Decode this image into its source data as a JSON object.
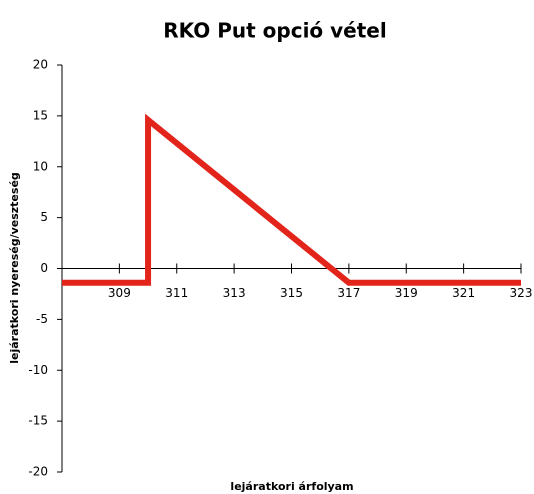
{
  "chart_data": {
    "type": "line",
    "title": "RKO Put opció vétel",
    "x_label": "lejáratkori árfolyam",
    "y_label": "lejáratkori nyereség/veszteség",
    "series": [
      {
        "name": "RKO Put",
        "color": "#e3241b",
        "x": [
          307,
          310,
          310,
          317,
          323
        ],
        "values": [
          -1.4,
          -1.4,
          14.6,
          -1.4,
          -1.4
        ]
      }
    ],
    "xlim": [
      307,
      323
    ],
    "xticks": [
      309,
      311,
      313,
      315,
      317,
      319,
      321,
      323
    ],
    "ylim": [
      -20,
      20
    ],
    "yticks": [
      -20,
      -15,
      -10,
      -5,
      0,
      5,
      10,
      15,
      20
    ]
  }
}
